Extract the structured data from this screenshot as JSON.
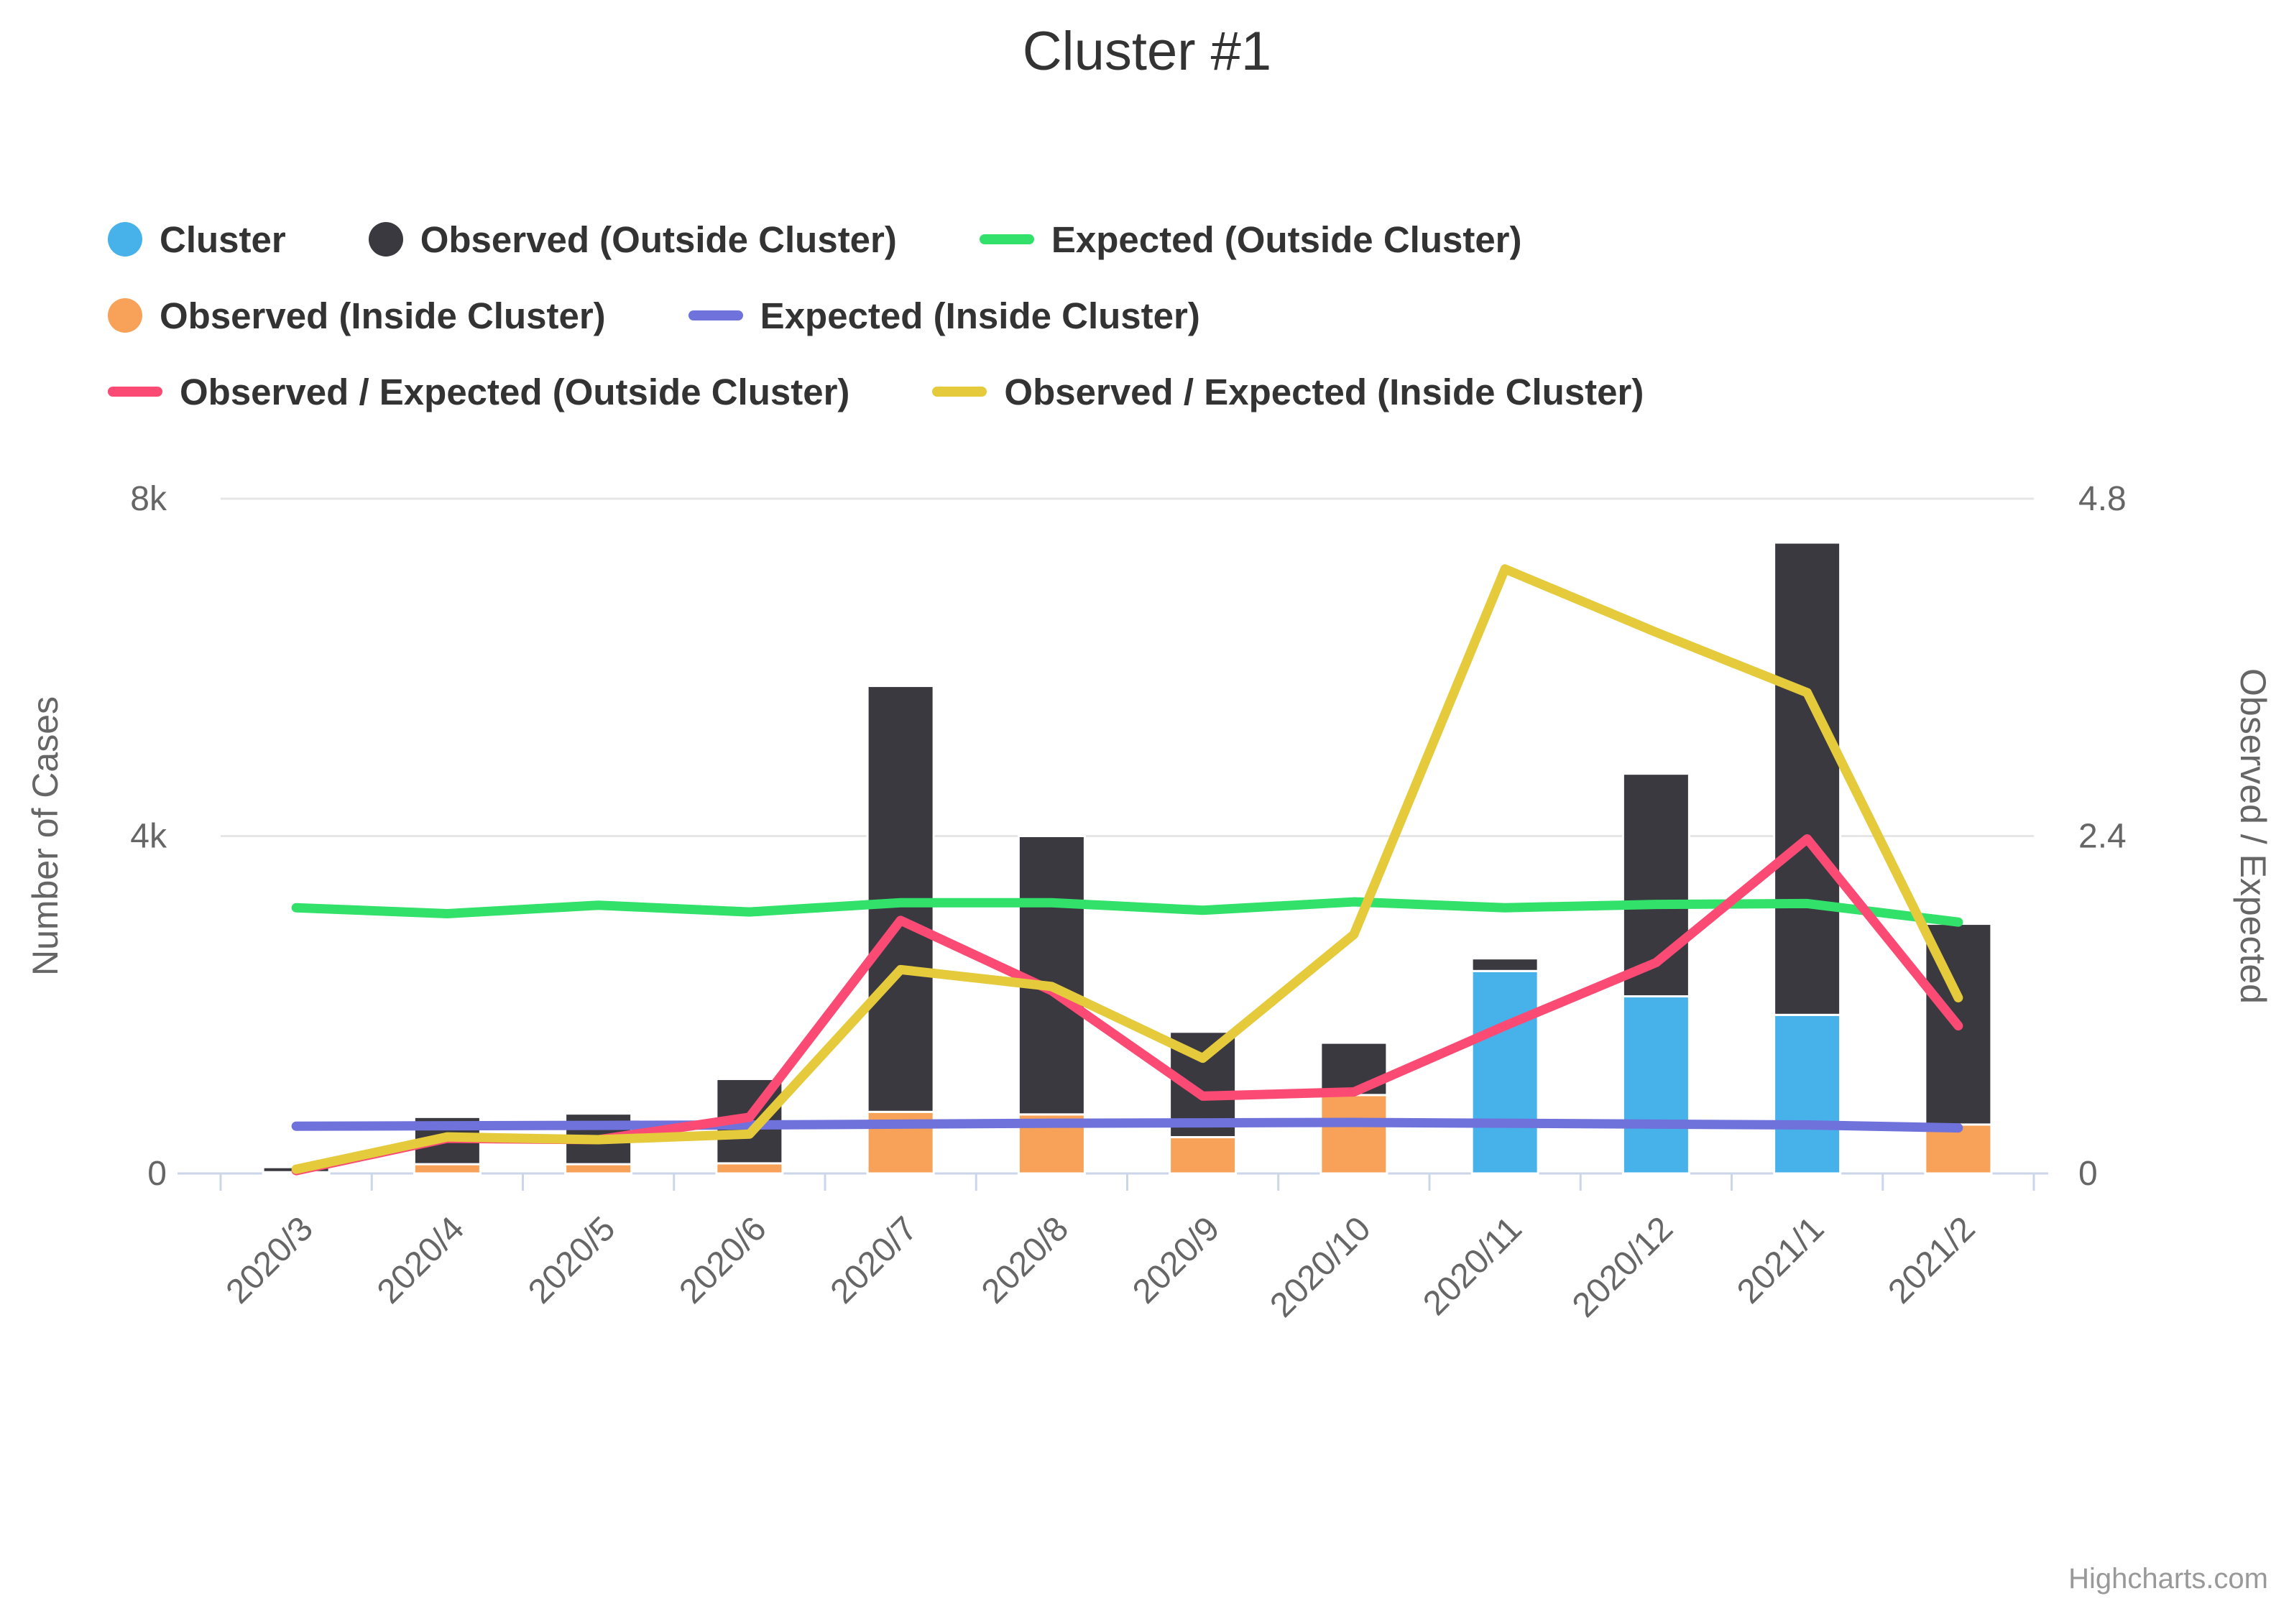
{
  "title": "Cluster #1",
  "credit": "Highcharts.com",
  "legend": {
    "rows": [
      [
        {
          "id": "cluster",
          "label": "Cluster",
          "marker": "circle",
          "color": "#47B1EA"
        },
        {
          "id": "observed-outside",
          "label": "Observed (Outside Cluster)",
          "marker": "circle",
          "color": "#3A3940"
        },
        {
          "id": "expected-outside",
          "label": "Expected (Outside Cluster)",
          "marker": "line",
          "color": "#31E16A"
        }
      ],
      [
        {
          "id": "observed-inside",
          "label": "Observed (Inside Cluster)",
          "marker": "circle",
          "color": "#F8A158"
        },
        {
          "id": "expected-inside",
          "label": "Expected (Inside Cluster)",
          "marker": "line",
          "color": "#7072DC"
        }
      ],
      [
        {
          "id": "oe-outside",
          "label": "Observed / Expected (Outside Cluster)",
          "marker": "line",
          "color": "#FB4B74"
        },
        {
          "id": "oe-inside",
          "label": "Observed / Expected (Inside Cluster)",
          "marker": "line",
          "color": "#E5CB3C"
        }
      ]
    ]
  },
  "chart_data": {
    "type": "combo: stacked columns + lines, dual y-axes",
    "categories": [
      "2020/3",
      "2020/4",
      "2020/5",
      "2020/6",
      "2020/7",
      "2020/8",
      "2020/9",
      "2020/10",
      "2020/11",
      "2020/12",
      "2021/1",
      "2021/2"
    ],
    "left_axis": {
      "title": "Number of Cases",
      "min": 0,
      "max": 8000,
      "ticks": [
        {
          "label": "0",
          "value": 0
        },
        {
          "label": "4k",
          "value": 4000
        },
        {
          "label": "8k",
          "value": 8000
        }
      ]
    },
    "right_axis": {
      "title": "Observed / Expected",
      "min": 0,
      "max": 4.8,
      "ticks": [
        {
          "label": "0",
          "value": 0
        },
        {
          "label": "2.4",
          "value": 2.4
        },
        {
          "label": "4.8",
          "value": 4.8
        }
      ]
    },
    "grid": true,
    "legend_position": "top",
    "series": [
      {
        "name": "Cluster",
        "id": "cluster",
        "type": "column",
        "stack_layer": 0,
        "axis": "left",
        "color": "#47B1EA",
        "values": [
          0,
          0,
          0,
          0,
          0,
          0,
          0,
          0,
          2400,
          2100,
          1880,
          0
        ]
      },
      {
        "name": "Observed (Inside Cluster)",
        "id": "observed-inside",
        "type": "column",
        "stack_layer": 1,
        "axis": "left",
        "color": "#F8A158",
        "values": [
          15,
          110,
          110,
          120,
          730,
          700,
          430,
          930,
          0,
          0,
          0,
          580
        ]
      },
      {
        "name": "Observed (Outside Cluster)",
        "id": "observed-outside",
        "type": "column",
        "stack_layer": 2,
        "axis": "left",
        "color": "#3A3940",
        "values": [
          60,
          560,
          600,
          1000,
          5050,
          3300,
          1250,
          620,
          150,
          2640,
          5600,
          2380
        ]
      },
      {
        "name": "Expected (Outside Cluster)",
        "id": "expected-outside",
        "type": "line",
        "axis": "left",
        "color": "#31E16A",
        "values": [
          3150,
          3080,
          3180,
          3100,
          3210,
          3210,
          3120,
          3220,
          3150,
          3190,
          3200,
          2980
        ]
      },
      {
        "name": "Expected (Inside Cluster)",
        "id": "expected-inside",
        "type": "line",
        "axis": "left",
        "color": "#7072DC",
        "values": [
          560,
          565,
          570,
          575,
          585,
          595,
          600,
          605,
          595,
          585,
          575,
          540
        ]
      },
      {
        "name": "Observed / Expected (Outside Cluster)",
        "id": "oe-outside",
        "type": "line",
        "axis": "right",
        "color": "#FB4B74",
        "values": [
          0.02,
          0.25,
          0.24,
          0.4,
          1.8,
          1.3,
          0.55,
          0.58,
          1.05,
          1.5,
          2.38,
          1.05
        ]
      },
      {
        "name": "Observed / Expected (Inside Cluster)",
        "id": "oe-inside",
        "type": "line",
        "axis": "right",
        "color": "#E5CB3C",
        "values": [
          0.03,
          0.26,
          0.24,
          0.28,
          1.45,
          1.33,
          0.82,
          1.7,
          4.3,
          3.85,
          3.42,
          1.25
        ]
      }
    ]
  }
}
